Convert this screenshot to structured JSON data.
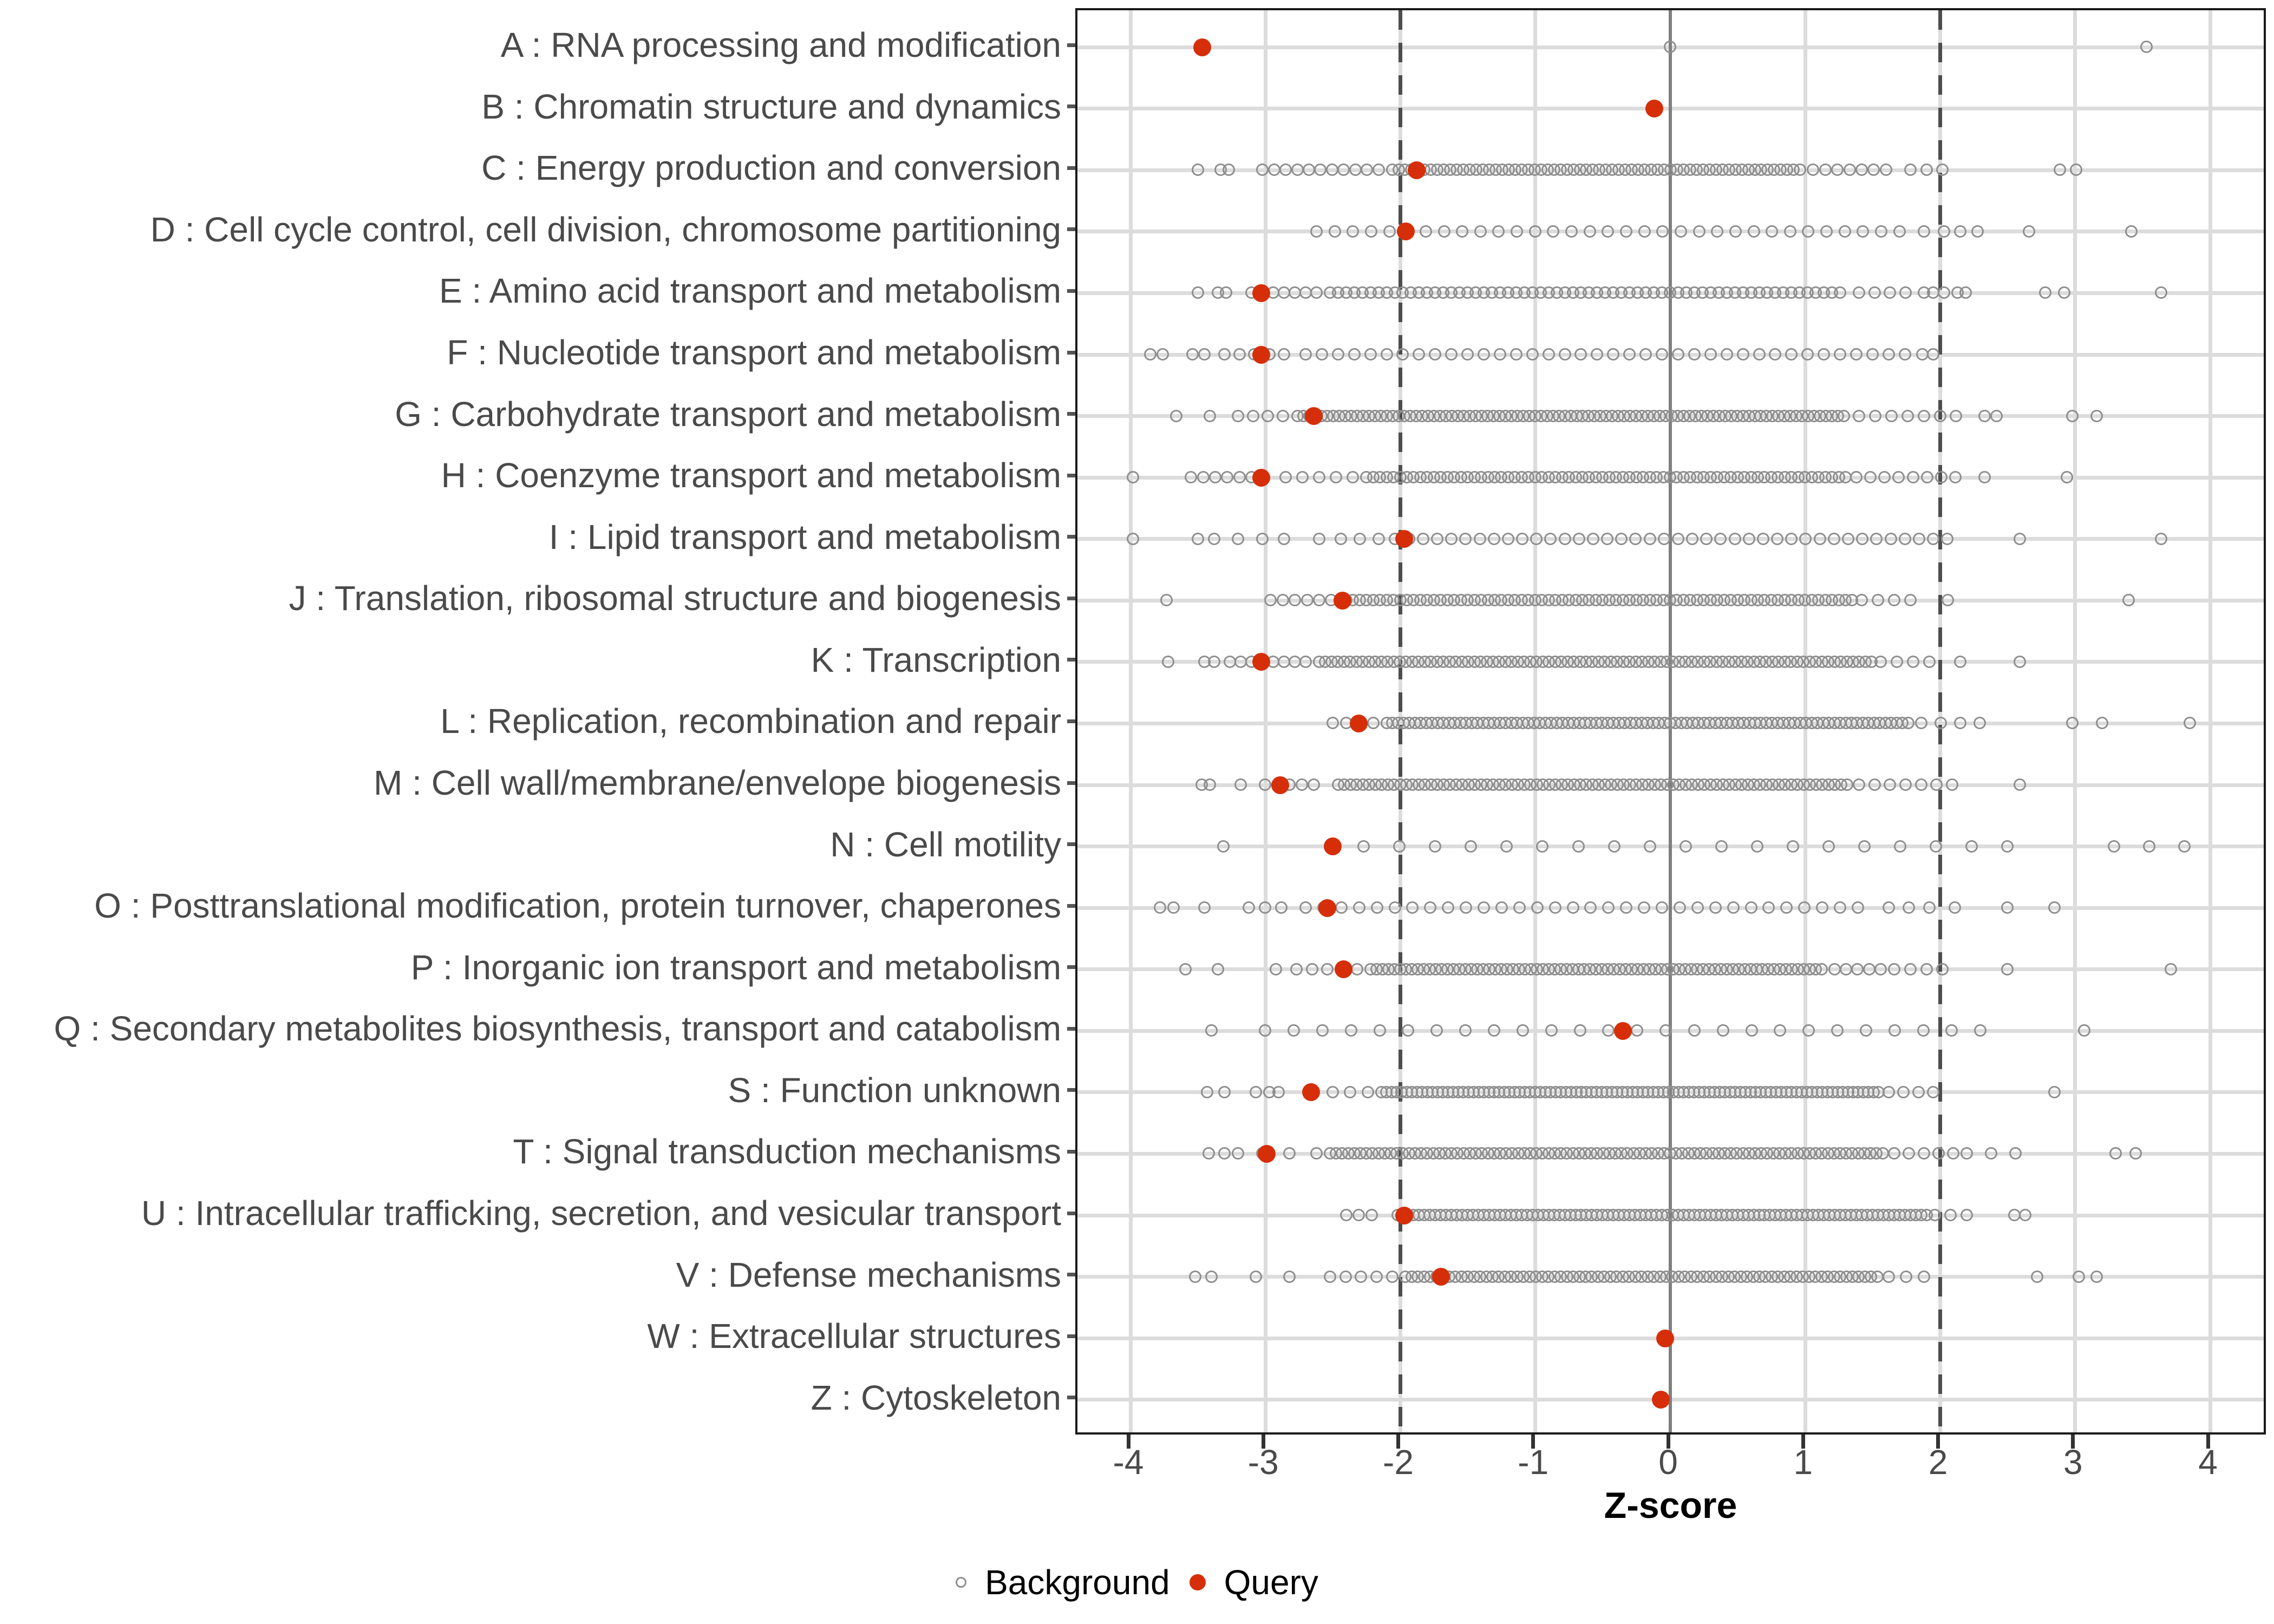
{
  "figure": {
    "colors": {
      "query_red": "#d62e09",
      "background_stroke": "#8f8f8f",
      "gridline": "#dcdcdc",
      "zero_line": "#7f7f7f",
      "threshold_dashed": "#4d4d4d",
      "panel_border": "#1a1a1a",
      "axis_text": "#4a4a4a"
    },
    "legend": {
      "background_label": "Background",
      "query_label": "Query"
    }
  },
  "chart_data": {
    "type": "scatter",
    "title": "",
    "xlabel": "Z-score",
    "ylabel": "",
    "xlim": [
      -4.4,
      4.4
    ],
    "x_ticks": [
      -4,
      -3,
      -2,
      -1,
      0,
      1,
      2,
      3,
      4
    ],
    "x_tick_labels": [
      "-4",
      "-3",
      "-2",
      "-1",
      "0",
      "1",
      "2",
      "3",
      "4"
    ],
    "grid": "major-only",
    "legend_position": "bottom",
    "reference_lines": {
      "solid_at": 0,
      "dashed_at": [
        -2,
        2
      ]
    },
    "series_names": [
      "Background",
      "Query"
    ],
    "categories": [
      {
        "label": "A : RNA processing and modification",
        "query": -3.47,
        "background_points": [
          0.0,
          3.53
        ],
        "background_runs": []
      },
      {
        "label": "B : Chromatin structure and dynamics",
        "query": -0.12,
        "background_points": [],
        "background_runs": []
      },
      {
        "label": "C : Energy production and conversion",
        "query": -1.88,
        "background_points": [
          -3.5,
          -3.33,
          -3.27,
          1.78,
          1.9,
          2.02,
          2.89,
          3.01
        ],
        "background_runs": [
          [
            -3.02,
            -2.16,
            0.086
          ],
          [
            -2.06,
            1.0,
            0.048
          ],
          [
            1.06,
            1.6,
            0.09
          ]
        ]
      },
      {
        "label": "D : Cell cycle control, cell division, chromosome partitioning",
        "query": -1.96,
        "background_points": [
          1.88,
          2.03,
          2.15,
          2.28,
          2.66,
          3.42
        ],
        "background_runs": [
          [
            -2.62,
            1.75,
            0.135
          ]
        ]
      },
      {
        "label": "E : Amino acid transport and metabolism",
        "query": -3.03,
        "background_points": [
          -3.5,
          -3.35,
          -3.29,
          1.88,
          1.95,
          2.03,
          2.13,
          2.19,
          2.78,
          2.92,
          3.64
        ],
        "background_runs": [
          [
            -3.1,
            -2.62,
            0.08
          ],
          [
            -2.52,
            1.3,
            0.06
          ],
          [
            1.4,
            1.75,
            0.115
          ]
        ]
      },
      {
        "label": "F : Nucleotide transport and metabolism",
        "query": -3.03,
        "background_points": [
          -3.85,
          -3.76,
          -3.54,
          -3.45,
          1.62,
          1.74,
          1.87,
          1.95
        ],
        "background_runs": [
          [
            -3.3,
            -2.8,
            0.11
          ],
          [
            -2.7,
            1.5,
            0.12
          ]
        ]
      },
      {
        "label": "G : Carbohydrate transport and metabolism",
        "query": -2.64,
        "background_points": [
          -3.66,
          -3.41,
          2.33,
          2.42,
          2.98,
          3.16
        ],
        "background_runs": [
          [
            -3.2,
            -2.86,
            0.11
          ],
          [
            -2.76,
            1.32,
            0.044
          ],
          [
            1.4,
            2.12,
            0.12
          ]
        ]
      },
      {
        "label": "H : Coenzyme transport and metabolism",
        "query": -3.03,
        "background_points": [
          -3.98,
          2.33,
          2.94
        ],
        "background_runs": [
          [
            -3.55,
            -2.95,
            0.09
          ],
          [
            -2.85,
            -2.35,
            0.125
          ],
          [
            -2.25,
            1.3,
            0.05
          ],
          [
            1.38,
            2.12,
            0.105
          ]
        ]
      },
      {
        "label": "I : Lipid transport and metabolism",
        "query": -1.97,
        "background_points": [
          -3.98,
          -3.5,
          -3.38,
          -3.2,
          -3.02,
          -2.86,
          -2.6,
          -2.44,
          -2.3,
          -2.16,
          2.59,
          3.64
        ],
        "background_runs": [
          [
            -2.04,
            2.1,
            0.105
          ]
        ]
      },
      {
        "label": "J : Translation, ribosomal structure and biogenesis",
        "query": -2.43,
        "background_points": [
          -3.73,
          2.06,
          3.4
        ],
        "background_runs": [
          [
            -2.96,
            -2.5,
            0.09
          ],
          [
            -2.4,
            1.36,
            0.05
          ],
          [
            1.42,
            1.78,
            0.12
          ]
        ]
      },
      {
        "label": "K : Transcription",
        "query": -3.03,
        "background_points": [
          -3.72,
          -3.45,
          -3.38,
          2.15,
          2.59
        ],
        "background_runs": [
          [
            -3.26,
            -2.7,
            0.08
          ],
          [
            -2.6,
            1.5,
            0.046
          ],
          [
            1.56,
            1.92,
            0.12
          ]
        ]
      },
      {
        "label": "L : Replication, recombination and repair",
        "query": -2.31,
        "background_points": [
          2.98,
          3.2,
          3.85
        ],
        "background_runs": [
          [
            -2.5,
            -2.2,
            0.1
          ],
          [
            -2.1,
            1.8,
            0.042
          ],
          [
            1.86,
            2.3,
            0.145
          ]
        ]
      },
      {
        "label": "M : Cell wall/membrane/envelope biogenesis",
        "query": -2.89,
        "background_points": [
          -3.47,
          -3.41,
          -3.18,
          2.59
        ],
        "background_runs": [
          [
            -3.0,
            -2.56,
            0.09
          ],
          [
            -2.46,
            1.32,
            0.046
          ],
          [
            1.4,
            2.2,
            0.115
          ]
        ]
      },
      {
        "label": "N : Cell motility",
        "query": -2.5,
        "background_points": [
          -3.31,
          3.29,
          3.55,
          3.81
        ],
        "background_runs": [
          [
            -2.27,
            2.5,
            0.265
          ]
        ]
      },
      {
        "label": "O : Posttranslational modification, protein turnover, chaperones",
        "query": -2.54,
        "background_points": [
          -3.78,
          -3.68,
          -3.45,
          2.11,
          2.5,
          2.85
        ],
        "background_runs": [
          [
            -3.12,
            -2.88,
            0.12
          ],
          [
            -2.7,
            1.52,
            0.132
          ],
          [
            1.62,
            1.92,
            0.15
          ]
        ]
      },
      {
        "label": "P : Inorganic ion transport and metabolism",
        "query": -2.42,
        "background_points": [
          -3.59,
          -3.35,
          -2.92,
          -2.77,
          2.5,
          3.71
        ],
        "background_runs": [
          [
            -2.65,
            -2.32,
            0.11
          ],
          [
            -2.22,
            1.15,
            0.044
          ],
          [
            1.22,
            1.56,
            0.085
          ],
          [
            1.66,
            2.02,
            0.12
          ]
        ]
      },
      {
        "label": "Q : Secondary metabolites biosynthesis, transport and catabolism",
        "query": -0.35,
        "background_points": [
          -3.4,
          3.07
        ],
        "background_runs": [
          [
            -3.0,
            2.5,
            0.212
          ]
        ]
      },
      {
        "label": "S : Function unknown",
        "query": -2.66,
        "background_points": [
          -3.43,
          -3.3,
          -3.07,
          -2.97,
          -2.9,
          2.85
        ],
        "background_runs": [
          [
            -2.5,
            -2.24,
            0.13
          ],
          [
            -2.14,
            1.56,
            0.038
          ],
          [
            1.62,
            1.96,
            0.11
          ]
        ]
      },
      {
        "label": "T : Signal transduction mechanisms",
        "query": -2.99,
        "background_points": [
          -3.42,
          -3.3,
          -3.2,
          3.3,
          3.45
        ],
        "background_runs": [
          [
            -3.02,
            -2.62,
            0.2
          ],
          [
            -2.52,
            1.6,
            0.045
          ],
          [
            1.66,
            2.1,
            0.11
          ],
          [
            2.2,
            2.56,
            0.18
          ]
        ]
      },
      {
        "label": "U : Intracellular trafficking, secretion, and vesicular transport",
        "query": -1.97,
        "background_points": [
          2.55,
          2.63
        ],
        "background_runs": [
          [
            -2.4,
            -2.12,
            0.095
          ],
          [
            -2.02,
            1.9,
            0.04
          ],
          [
            1.96,
            2.2,
            0.12
          ]
        ]
      },
      {
        "label": "V : Defense mechanisms",
        "query": -1.7,
        "background_points": [
          -3.52,
          -3.4,
          -3.07,
          -2.82,
          2.72,
          3.03,
          3.16
        ],
        "background_runs": [
          [
            -2.52,
            -2.06,
            0.115
          ],
          [
            -1.96,
            1.56,
            0.046
          ],
          [
            1.62,
            2.0,
            0.13
          ]
        ]
      },
      {
        "label": "W : Extracellular structures",
        "query": -0.04,
        "background_points": [],
        "background_runs": []
      },
      {
        "label": "Z : Cytoskeleton",
        "query": -0.07,
        "background_points": [],
        "background_runs": []
      }
    ]
  }
}
